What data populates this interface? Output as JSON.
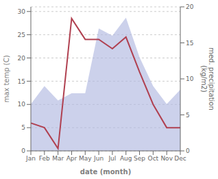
{
  "chart_data": {
    "type": "line",
    "categories": [
      "Jan",
      "Feb",
      "Mar",
      "Apr",
      "May",
      "Jun",
      "Jul",
      "Aug",
      "Sep",
      "Oct",
      "Nov",
      "Dec"
    ],
    "xlabel": "date (month)",
    "ylabel": "max temp (C)",
    "y2label": "med. precipitation\n(kg/m2)",
    "ylim": [
      0,
      31
    ],
    "yticks": [
      0,
      5,
      10,
      15,
      20,
      25,
      30
    ],
    "y2lim": [
      0,
      20
    ],
    "y2ticks": [
      0,
      5,
      10,
      15,
      20
    ],
    "grid": true,
    "series": [
      {
        "type": "area",
        "axis": "y2",
        "color": "#b0b8e0",
        "values": [
          6.5,
          9.0,
          7.0,
          8.0,
          8.0,
          17.0,
          16.0,
          18.5,
          13.0,
          9.0,
          6.5,
          8.5
        ]
      },
      {
        "type": "line",
        "color": "#b04050",
        "values": [
          6.0,
          5.0,
          0.5,
          28.5,
          24.0,
          24.0,
          22.0,
          24.5,
          17.0,
          10.0,
          5.0,
          5.0
        ]
      }
    ]
  }
}
